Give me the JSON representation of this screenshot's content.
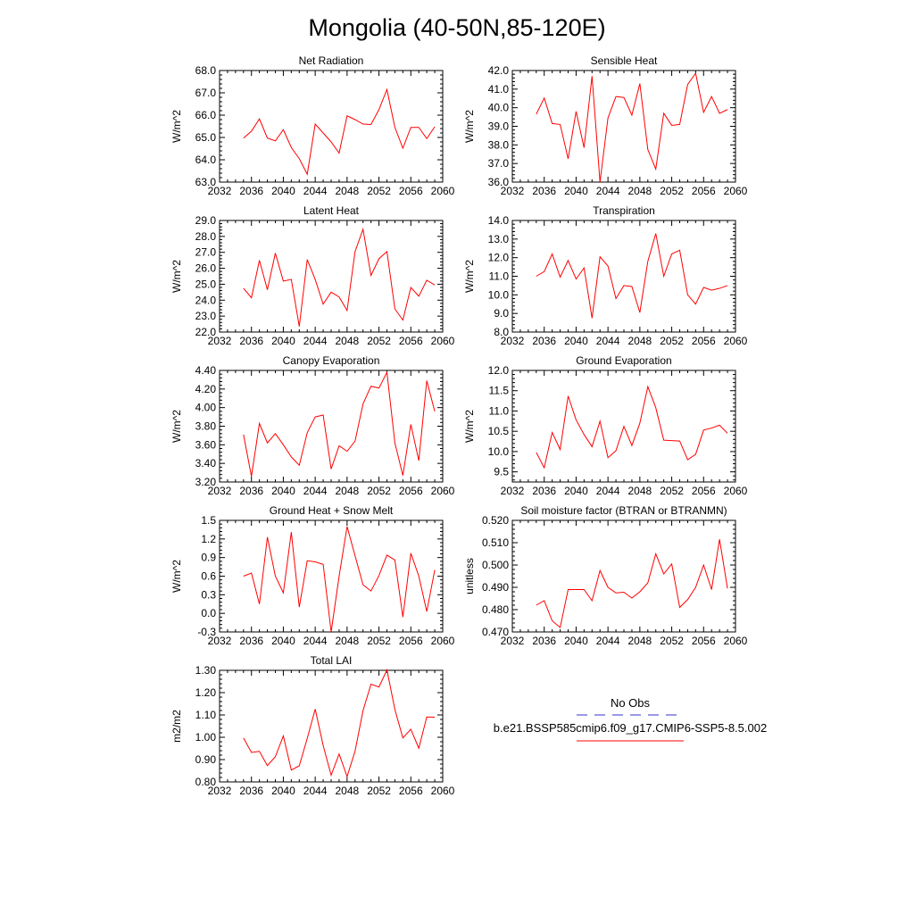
{
  "title": "Mongolia (40-50N,85-120E)",
  "legend": {
    "obs_label": "No Obs",
    "obs_color": "#3333cc",
    "model_label": "b.e21.BSSP585cmip6.f09_g17.CMIP6-SSP5-8.5.002",
    "model_color": "#ff0000"
  },
  "chart_data": [
    {
      "type": "line",
      "title": "Net Radiation",
      "ylabel": "W/m^2",
      "xlim": [
        2032,
        2060
      ],
      "ylim": [
        63.0,
        68.0
      ],
      "xticks": [
        "2032",
        "2036",
        "2040",
        "2044",
        "2048",
        "2052",
        "2056",
        "2060"
      ],
      "yticks": [
        "63.0",
        "64.0",
        "65.0",
        "66.0",
        "67.0",
        "68.0"
      ],
      "ytick_values": [
        63,
        64,
        65,
        66,
        67,
        68
      ],
      "x": [
        2035,
        2036,
        2037,
        2038,
        2039,
        2040,
        2041,
        2042,
        2043,
        2044,
        2045,
        2046,
        2047,
        2048,
        2049,
        2050,
        2051,
        2052,
        2053,
        2054,
        2055,
        2056,
        2057,
        2058,
        2059
      ],
      "values": [
        64.97,
        65.28,
        65.83,
        64.97,
        64.85,
        65.35,
        64.55,
        64.05,
        63.35,
        65.6,
        65.2,
        64.8,
        64.3,
        65.97,
        65.8,
        65.6,
        65.58,
        66.25,
        67.15,
        65.45,
        64.52,
        65.45,
        65.45,
        64.95,
        65.48
      ],
      "color": "#ff0000"
    },
    {
      "type": "line",
      "title": "Sensible Heat",
      "ylabel": "W/m^2",
      "xlim": [
        2032,
        2060
      ],
      "ylim": [
        36.0,
        42.0
      ],
      "xticks": [
        "2032",
        "2036",
        "2040",
        "2044",
        "2048",
        "2052",
        "2056",
        "2060"
      ],
      "yticks": [
        "36.0",
        "37.0",
        "38.0",
        "39.0",
        "40.0",
        "41.0",
        "42.0"
      ],
      "ytick_values": [
        36,
        37,
        38,
        39,
        40,
        41,
        42
      ],
      "x": [
        2035,
        2036,
        2037,
        2038,
        2039,
        2040,
        2041,
        2042,
        2043,
        2044,
        2045,
        2046,
        2047,
        2048,
        2049,
        2050,
        2051,
        2052,
        2053,
        2054,
        2055,
        2056,
        2057,
        2058,
        2059
      ],
      "values": [
        39.65,
        40.52,
        39.15,
        39.1,
        37.25,
        39.8,
        37.85,
        41.7,
        36.0,
        39.45,
        40.6,
        40.55,
        39.6,
        41.3,
        37.75,
        36.7,
        39.7,
        39.05,
        39.1,
        41.25,
        41.85,
        39.75,
        40.6,
        39.7,
        39.9
      ],
      "color": "#ff0000"
    },
    {
      "type": "line",
      "title": "Latent Heat",
      "ylabel": "W/m^2",
      "xlim": [
        2032,
        2060
      ],
      "ylim": [
        22.0,
        29.0
      ],
      "xticks": [
        "2032",
        "2036",
        "2040",
        "2044",
        "2048",
        "2052",
        "2056",
        "2060"
      ],
      "yticks": [
        "22.0",
        "23.0",
        "24.0",
        "25.0",
        "26.0",
        "27.0",
        "28.0",
        "29.0"
      ],
      "ytick_values": [
        22,
        23,
        24,
        25,
        26,
        27,
        28,
        29
      ],
      "x": [
        2035,
        2036,
        2037,
        2038,
        2039,
        2040,
        2041,
        2042,
        2043,
        2044,
        2045,
        2046,
        2047,
        2048,
        2049,
        2050,
        2051,
        2052,
        2053,
        2054,
        2055,
        2056,
        2057,
        2058,
        2059
      ],
      "values": [
        24.75,
        24.15,
        26.5,
        24.65,
        26.95,
        25.2,
        25.3,
        22.35,
        26.55,
        25.3,
        23.75,
        24.5,
        24.2,
        23.35,
        27.05,
        28.45,
        25.55,
        26.6,
        27.05,
        23.45,
        22.75,
        24.8,
        24.25,
        25.25,
        24.95
      ],
      "color": "#ff0000"
    },
    {
      "type": "line",
      "title": "Transpiration",
      "ylabel": "W/m^2",
      "xlim": [
        2032,
        2060
      ],
      "ylim": [
        8.0,
        14.0
      ],
      "xticks": [
        "2032",
        "2036",
        "2040",
        "2044",
        "2048",
        "2052",
        "2056",
        "2060"
      ],
      "yticks": [
        "8.0",
        "9.0",
        "10.0",
        "11.0",
        "12.0",
        "13.0",
        "14.0"
      ],
      "ytick_values": [
        8,
        9,
        10,
        11,
        12,
        13,
        14
      ],
      "x": [
        2035,
        2036,
        2037,
        2038,
        2039,
        2040,
        2041,
        2042,
        2043,
        2044,
        2045,
        2046,
        2047,
        2048,
        2049,
        2050,
        2051,
        2052,
        2053,
        2054,
        2055,
        2056,
        2057,
        2058,
        2059
      ],
      "values": [
        11.0,
        11.25,
        12.2,
        10.95,
        11.85,
        10.85,
        11.45,
        8.75,
        12.05,
        11.55,
        9.8,
        10.5,
        10.45,
        9.05,
        11.8,
        13.3,
        11.0,
        12.2,
        12.4,
        10.0,
        9.5,
        10.4,
        10.25,
        10.35,
        10.5
      ],
      "color": "#ff0000"
    },
    {
      "type": "line",
      "title": "Canopy Evaporation",
      "ylabel": "W/m^2",
      "xlim": [
        2032,
        2060
      ],
      "ylim": [
        3.2,
        4.4
      ],
      "xticks": [
        "2032",
        "2036",
        "2040",
        "2044",
        "2048",
        "2052",
        "2056",
        "2060"
      ],
      "yticks": [
        "3.20",
        "3.40",
        "3.60",
        "3.80",
        "4.00",
        "4.20",
        "4.40"
      ],
      "ytick_values": [
        3.2,
        3.4,
        3.6,
        3.8,
        4.0,
        4.2,
        4.4
      ],
      "x": [
        2035,
        2036,
        2037,
        2038,
        2039,
        2040,
        2041,
        2042,
        2043,
        2044,
        2045,
        2046,
        2047,
        2048,
        2049,
        2050,
        2051,
        2052,
        2053,
        2054,
        2055,
        2056,
        2057,
        2058,
        2059
      ],
      "values": [
        3.71,
        3.26,
        3.83,
        3.62,
        3.72,
        3.6,
        3.47,
        3.38,
        3.73,
        3.9,
        3.92,
        3.34,
        3.59,
        3.53,
        3.64,
        4.04,
        4.23,
        4.21,
        4.38,
        3.62,
        3.27,
        3.82,
        3.43,
        4.29,
        3.96
      ],
      "color": "#ff0000"
    },
    {
      "type": "line",
      "title": "Ground Evaporation",
      "ylabel": "W/m^2",
      "xlim": [
        2032,
        2060
      ],
      "ylim": [
        9.25,
        12.0
      ],
      "xticks": [
        "2032",
        "2036",
        "2040",
        "2044",
        "2048",
        "2052",
        "2056",
        "2060"
      ],
      "yticks": [
        "9.5",
        "10.0",
        "10.5",
        "11.0",
        "11.5",
        "12.0"
      ],
      "ytick_values": [
        9.5,
        10.0,
        10.5,
        11.0,
        11.5,
        12.0
      ],
      "x": [
        2035,
        2036,
        2037,
        2038,
        2039,
        2040,
        2041,
        2042,
        2043,
        2044,
        2045,
        2046,
        2047,
        2048,
        2049,
        2050,
        2051,
        2052,
        2053,
        2054,
        2055,
        2056,
        2057,
        2058,
        2059
      ],
      "values": [
        9.98,
        9.6,
        10.47,
        10.05,
        11.37,
        10.78,
        10.42,
        10.12,
        10.75,
        9.85,
        10.02,
        10.62,
        10.15,
        10.7,
        11.6,
        11.08,
        10.28,
        10.27,
        10.26,
        9.8,
        9.93,
        10.53,
        10.58,
        10.65,
        10.45
      ],
      "color": "#ff0000"
    },
    {
      "type": "line",
      "title": "Ground Heat + Snow Melt",
      "ylabel": "W/m^2",
      "xlim": [
        2032,
        2060
      ],
      "ylim": [
        -0.3,
        1.5
      ],
      "xticks": [
        "2032",
        "2036",
        "2040",
        "2044",
        "2048",
        "2052",
        "2056",
        "2060"
      ],
      "yticks": [
        "-0.3",
        "0.0",
        "0.3",
        "0.6",
        "0.9",
        "1.2",
        "1.5"
      ],
      "ytick_values": [
        -0.3,
        0.0,
        0.3,
        0.6,
        0.9,
        1.2,
        1.5
      ],
      "x": [
        2035,
        2036,
        2037,
        2038,
        2039,
        2040,
        2041,
        2042,
        2043,
        2044,
        2045,
        2046,
        2047,
        2048,
        2049,
        2050,
        2051,
        2052,
        2053,
        2054,
        2055,
        2056,
        2057,
        2058,
        2059
      ],
      "values": [
        0.6,
        0.65,
        0.15,
        1.23,
        0.6,
        0.33,
        1.31,
        0.1,
        0.85,
        0.83,
        0.79,
        -0.3,
        0.6,
        1.4,
        0.93,
        0.46,
        0.36,
        0.61,
        0.94,
        0.86,
        -0.06,
        0.97,
        0.6,
        0.03,
        0.7
      ],
      "color": "#ff0000"
    },
    {
      "type": "line",
      "title": "Soil moisture factor (BTRAN or BTRANMN)",
      "ylabel": "unitless",
      "xlim": [
        2032,
        2060
      ],
      "ylim": [
        0.47,
        0.52
      ],
      "xticks": [
        "2032",
        "2036",
        "2040",
        "2044",
        "2048",
        "2052",
        "2056",
        "2060"
      ],
      "yticks": [
        "0.470",
        "0.480",
        "0.490",
        "0.500",
        "0.510",
        "0.520"
      ],
      "ytick_values": [
        0.47,
        0.48,
        0.49,
        0.5,
        0.51,
        0.52
      ],
      "x": [
        2035,
        2036,
        2037,
        2038,
        2039,
        2040,
        2041,
        2042,
        2043,
        2044,
        2045,
        2046,
        2047,
        2048,
        2049,
        2050,
        2051,
        2052,
        2053,
        2054,
        2055,
        2056,
        2057,
        2058,
        2059
      ],
      "values": [
        0.482,
        0.484,
        0.475,
        0.472,
        0.489,
        0.489,
        0.489,
        0.484,
        0.4975,
        0.49,
        0.4875,
        0.4878,
        0.4852,
        0.488,
        0.492,
        0.505,
        0.496,
        0.5005,
        0.481,
        0.4845,
        0.49,
        0.5,
        0.489,
        0.5115,
        0.4895
      ],
      "color": "#ff0000"
    },
    {
      "type": "line",
      "title": "Total LAI",
      "ylabel": "m2/m2",
      "xlim": [
        2032,
        2060
      ],
      "ylim": [
        0.8,
        1.3
      ],
      "xticks": [
        "2032",
        "2036",
        "2040",
        "2044",
        "2048",
        "2052",
        "2056",
        "2060"
      ],
      "yticks": [
        "0.80",
        "0.90",
        "1.00",
        "1.10",
        "1.20",
        "1.30"
      ],
      "ytick_values": [
        0.8,
        0.9,
        1.0,
        1.1,
        1.2,
        1.3
      ],
      "x": [
        2035,
        2036,
        2037,
        2038,
        2039,
        2040,
        2041,
        2042,
        2043,
        2044,
        2045,
        2046,
        2047,
        2048,
        2049,
        2050,
        2051,
        2052,
        2053,
        2054,
        2055,
        2056,
        2057,
        2058,
        2059
      ],
      "values": [
        0.997,
        0.932,
        0.937,
        0.873,
        0.913,
        1.006,
        0.853,
        0.872,
        0.995,
        1.126,
        0.963,
        0.83,
        0.925,
        0.824,
        0.938,
        1.119,
        1.238,
        1.225,
        1.302,
        1.124,
        0.997,
        1.036,
        0.951,
        1.091,
        1.09
      ],
      "color": "#ff0000"
    }
  ]
}
